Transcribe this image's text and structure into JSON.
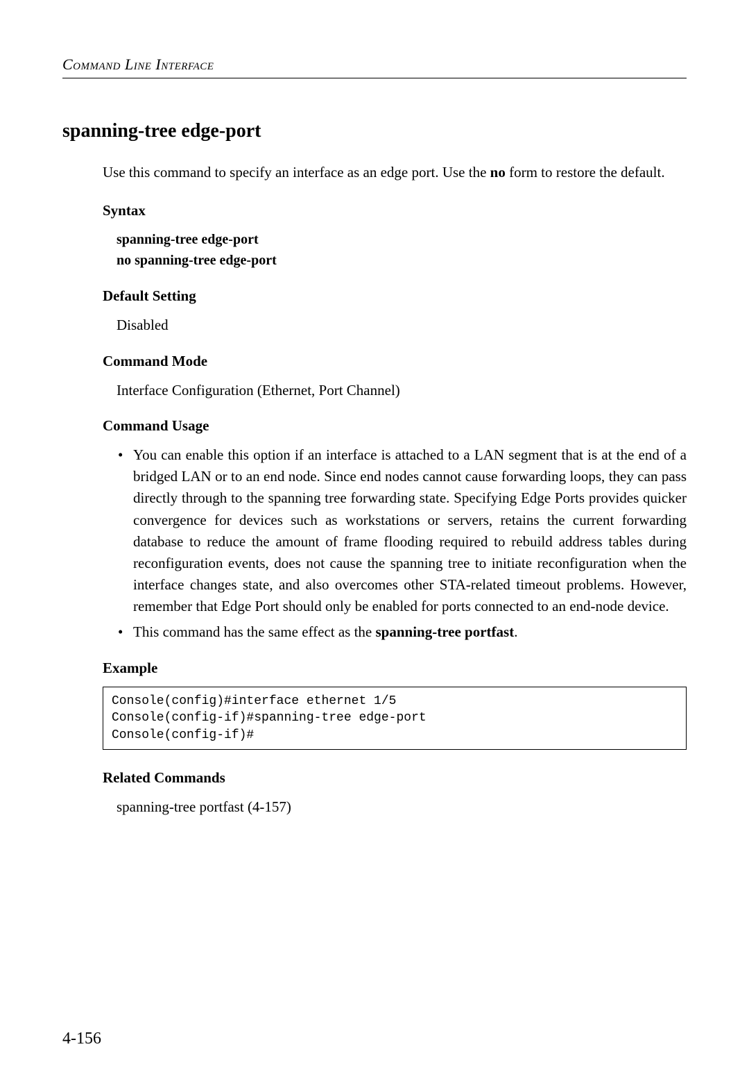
{
  "header": {
    "running_title": "Command Line Interface"
  },
  "section": {
    "title": "spanning-tree edge-port",
    "intro_pre": "Use this command to specify an interface as an edge port. Use the ",
    "intro_bold": "no",
    "intro_post": " form to restore the default."
  },
  "syntax": {
    "heading": "Syntax",
    "line1": "spanning-tree edge-port",
    "line2": "no spanning-tree edge-port"
  },
  "default_setting": {
    "heading": "Default Setting",
    "value": "Disabled"
  },
  "command_mode": {
    "heading": "Command Mode",
    "value": "Interface Configuration (Ethernet, Port Channel)"
  },
  "command_usage": {
    "heading": "Command Usage",
    "bullet1": "You can enable this option if an interface is attached to a LAN segment that is at the end of a bridged LAN or to an end node. Since end nodes cannot cause forwarding loops, they can pass directly through to the spanning tree forwarding state. Specifying Edge Ports provides quicker convergence for devices such as workstations or servers, retains the current forwarding database to reduce the amount of frame flooding required to rebuild address tables during reconfiguration events, does not cause the spanning tree to initiate reconfiguration when the interface changes state, and also overcomes other STA-related timeout problems. However, remember that Edge Port should only be enabled for ports connected to an end-node device.",
    "bullet2_pre": "This command has the same effect as the ",
    "bullet2_bold": "spanning-tree portfast",
    "bullet2_post": "."
  },
  "example": {
    "heading": "Example",
    "code": "Console(config)#interface ethernet 1/5\nConsole(config-if)#spanning-tree edge-port\nConsole(config-if)#"
  },
  "related": {
    "heading": "Related Commands",
    "value": "spanning-tree portfast (4-157)"
  },
  "footer": {
    "page_number": "4-156"
  }
}
